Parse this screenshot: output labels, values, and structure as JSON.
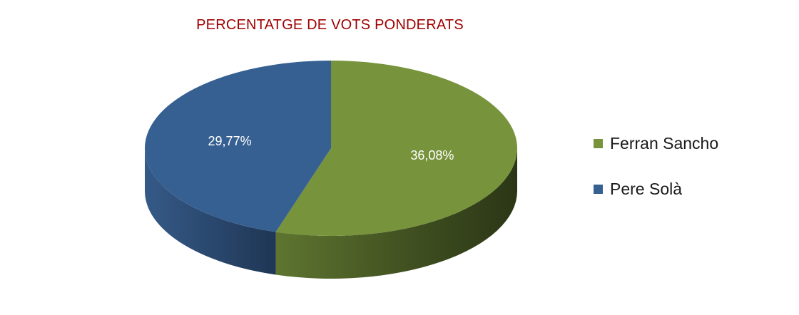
{
  "chart_data": {
    "type": "pie",
    "title": "PERCENTATGE DE VOTS PONDERATS",
    "title_color": "#a00000",
    "slices": [
      {
        "name": "Ferran Sancho",
        "value": 36.08,
        "label": "36,08%",
        "color": "#77933c"
      },
      {
        "name": "Pere Solà",
        "value": 29.77,
        "label": "29,77%",
        "color": "#376092"
      }
    ],
    "style": "3d",
    "legend_position": "right"
  }
}
